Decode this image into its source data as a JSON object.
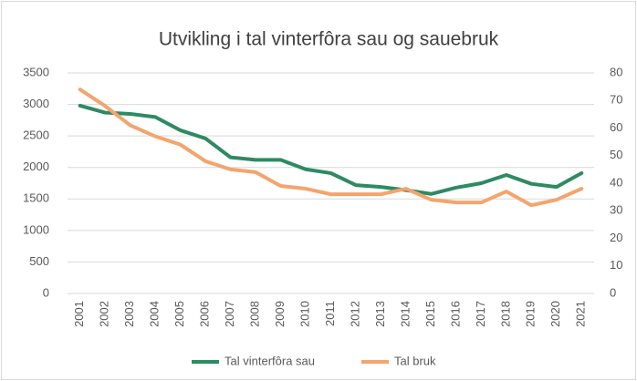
{
  "chart_data": {
    "type": "line",
    "title": "Utvikling i tal vinterfôra sau og sauebruk",
    "categories": [
      "2001",
      "2002",
      "2003",
      "2004",
      "2005",
      "2006",
      "2007",
      "2008",
      "2009",
      "2010",
      "2011",
      "2012",
      "2013",
      "2014",
      "2015",
      "2016",
      "2017",
      "2018",
      "2019",
      "2020",
      "2021"
    ],
    "series": [
      {
        "name": "Tal vinterfôra sau",
        "color": "#2e8a63",
        "values": [
          2980,
          2870,
          2850,
          2800,
          2590,
          2460,
          2160,
          2120,
          2120,
          1970,
          1910,
          1720,
          1690,
          1640,
          1580,
          1680,
          1750,
          1880,
          1740,
          1690,
          1910
        ]
      },
      {
        "name": "Tal bruk",
        "color": "#f4a46e",
        "axis": "y2",
        "values": [
          74,
          68,
          61,
          57,
          54,
          48,
          45,
          44,
          39,
          38,
          36,
          36,
          36,
          38,
          34,
          33,
          33,
          37,
          32,
          34,
          38
        ]
      }
    ],
    "ylim": [
      0,
      3500
    ],
    "yticks": [
      0,
      500,
      1000,
      1500,
      2000,
      2500,
      3000,
      3500
    ],
    "y2lim": [
      0,
      80
    ],
    "y2ticks": [
      0,
      10,
      20,
      30,
      40,
      50,
      60,
      70,
      80
    ],
    "grid": true,
    "legend": "bottom"
  }
}
